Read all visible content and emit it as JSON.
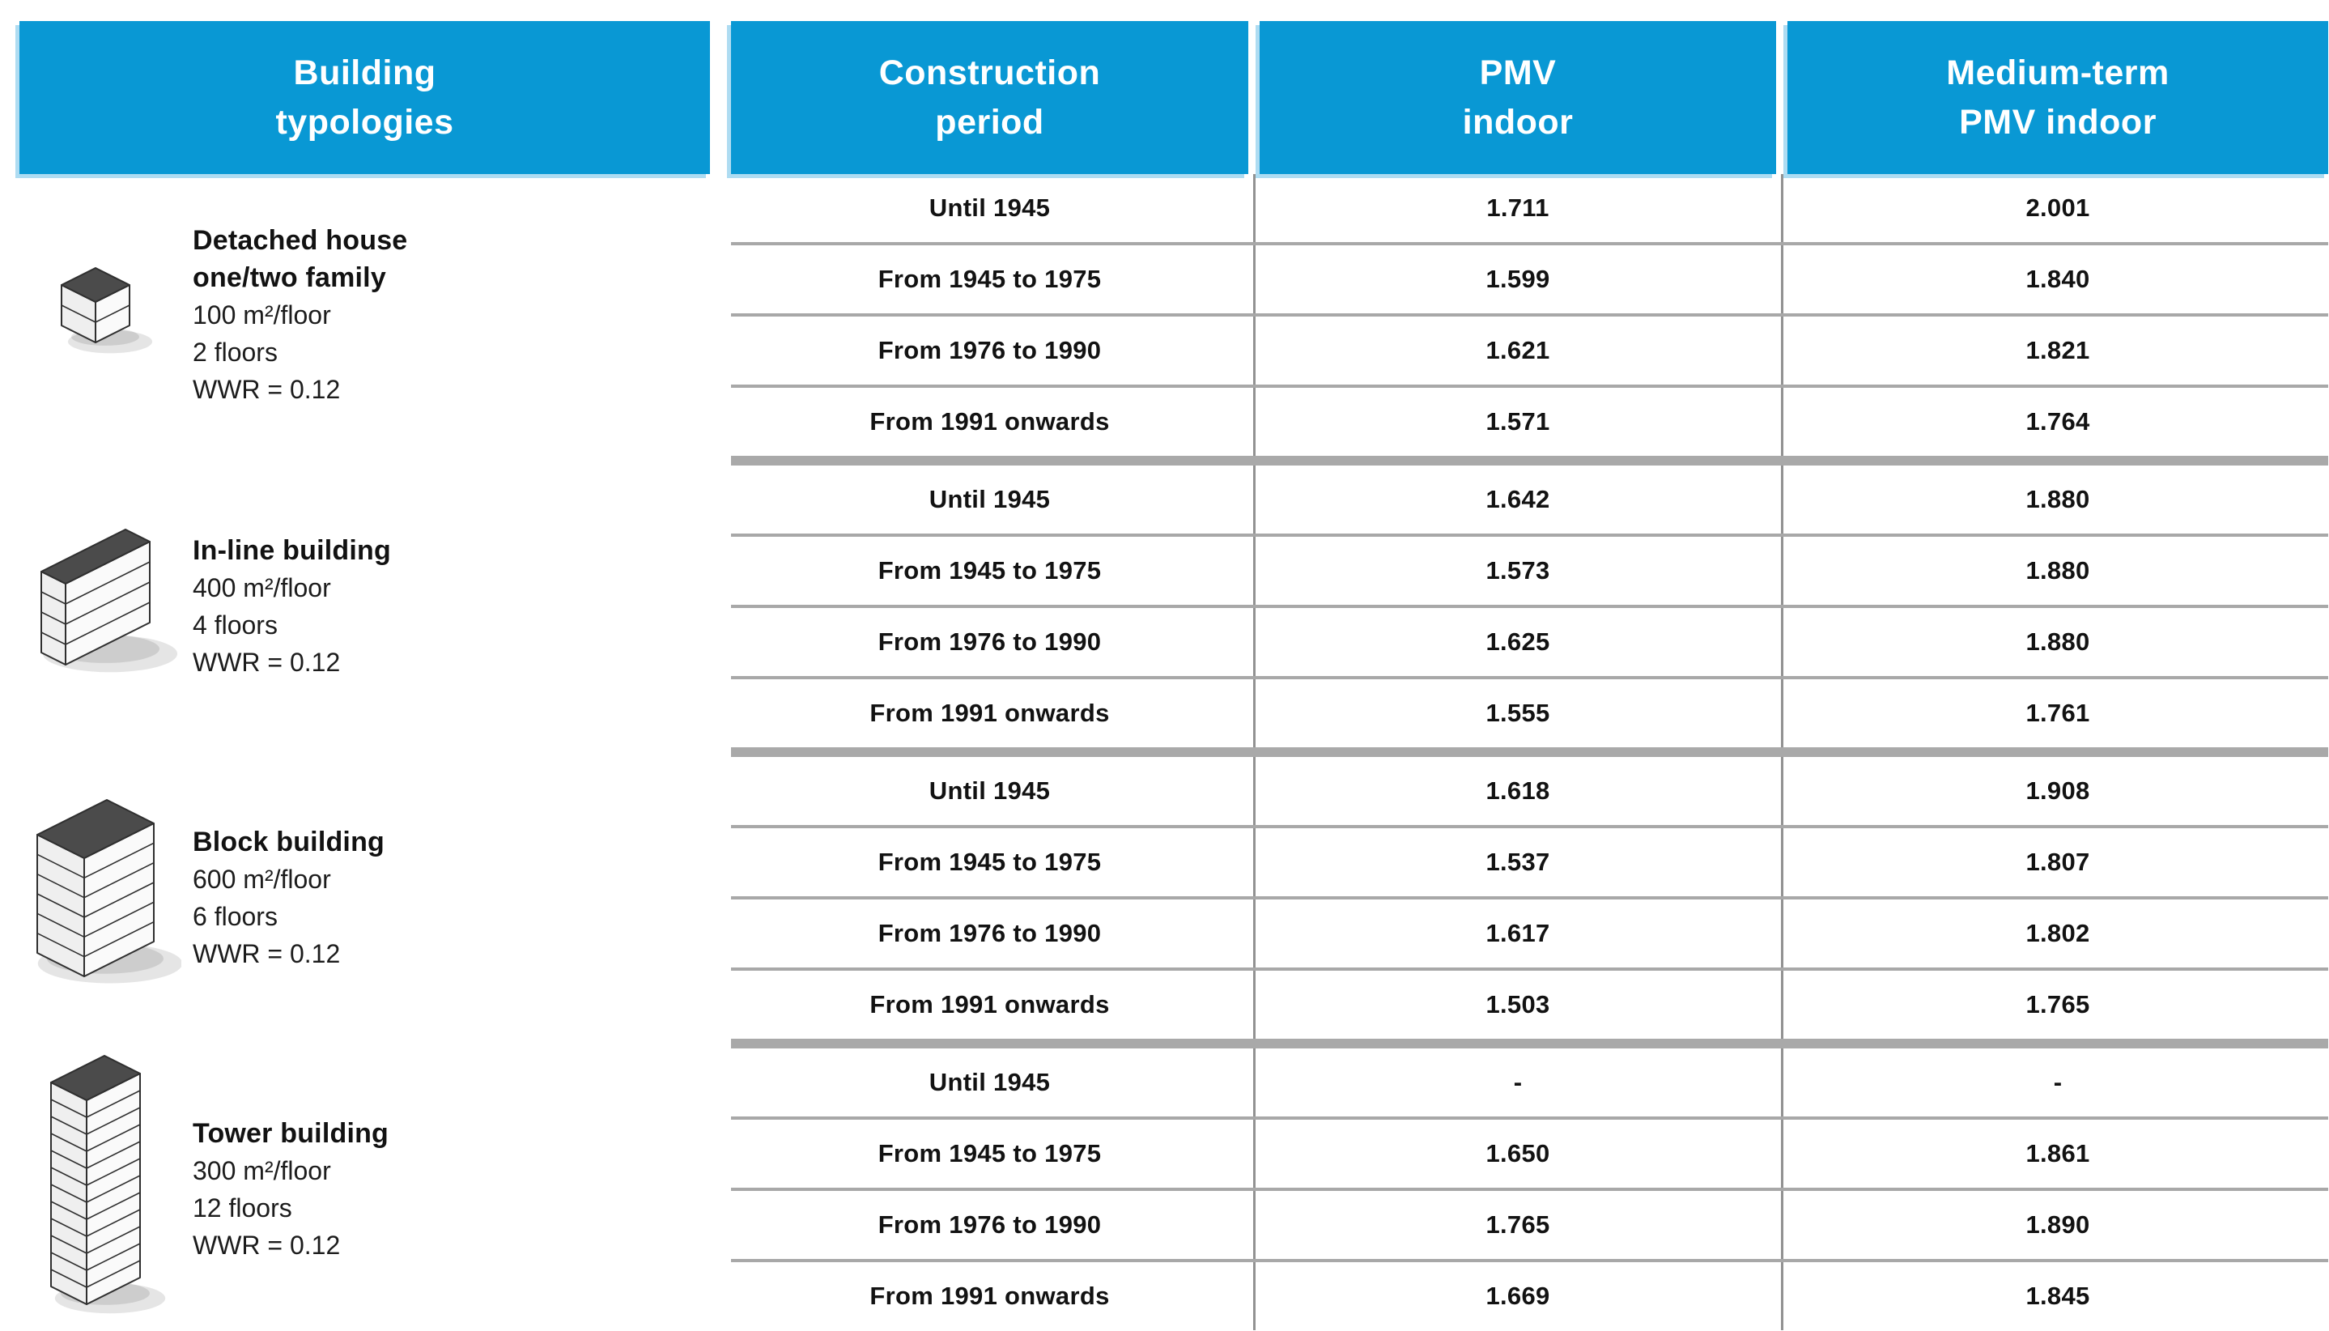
{
  "header": {
    "col1": {
      "line1": "Building",
      "line2": "typologies"
    },
    "col2": {
      "line1": "Construction",
      "line2": "period"
    },
    "col3": {
      "line1": "PMV",
      "line2": "indoor"
    },
    "col4": {
      "line1": "Medium-term",
      "line2": "PMV indoor"
    }
  },
  "buildings": [
    {
      "name_line1": "Detached house",
      "name_line2": "one/two family",
      "area": "100 m²/floor",
      "floors": "2 floors",
      "wwr": "WWR = 0.12",
      "icon": "detached-house-icon"
    },
    {
      "name_line1": "In-line building",
      "area": "400 m²/floor",
      "floors": "4 floors",
      "wwr": "WWR = 0.12",
      "icon": "in-line-building-icon"
    },
    {
      "name_line1": "Block building",
      "area": "600 m²/floor",
      "floors": "6 floors",
      "wwr": "WWR = 0.12",
      "icon": "block-building-icon"
    },
    {
      "name_line1": "Tower building",
      "area": "300 m²/floor",
      "floors": "12 floors",
      "wwr": "WWR = 0.12",
      "icon": "tower-building-icon"
    }
  ],
  "chart_data": {
    "type": "table",
    "columns": [
      "Building typologies",
      "Construction period",
      "PMV indoor",
      "Medium-term PMV indoor"
    ],
    "groups": [
      {
        "building": "Detached house one/two family",
        "specs": {
          "area_per_floor": "100 m²/floor",
          "floors": "2 floors",
          "wwr": "WWR = 0.12"
        },
        "rows": [
          {
            "period": "Until 1945",
            "pmv": "1.711",
            "mt_pmv": "2.001"
          },
          {
            "period": "From 1945 to 1975",
            "pmv": "1.599",
            "mt_pmv": "1.840"
          },
          {
            "period": "From 1976 to 1990",
            "pmv": "1.621",
            "mt_pmv": "1.821"
          },
          {
            "period": "From 1991 onwards",
            "pmv": "1.571",
            "mt_pmv": "1.764"
          }
        ]
      },
      {
        "building": "In-line building",
        "specs": {
          "area_per_floor": "400 m²/floor",
          "floors": "4 floors",
          "wwr": "WWR = 0.12"
        },
        "rows": [
          {
            "period": "Until 1945",
            "pmv": "1.642",
            "mt_pmv": "1.880"
          },
          {
            "period": "From 1945 to 1975",
            "pmv": "1.573",
            "mt_pmv": "1.880"
          },
          {
            "period": "From 1976 to 1990",
            "pmv": "1.625",
            "mt_pmv": "1.880"
          },
          {
            "period": "From 1991 onwards",
            "pmv": "1.555",
            "mt_pmv": "1.761"
          }
        ]
      },
      {
        "building": "Block building",
        "specs": {
          "area_per_floor": "600 m²/floor",
          "floors": "6 floors",
          "wwr": "WWR = 0.12"
        },
        "rows": [
          {
            "period": "Until 1945",
            "pmv": "1.618",
            "mt_pmv": "1.908"
          },
          {
            "period": "From 1945 to 1975",
            "pmv": "1.537",
            "mt_pmv": "1.807"
          },
          {
            "period": "From 1976 to 1990",
            "pmv": "1.617",
            "mt_pmv": "1.802"
          },
          {
            "period": "From 1991 onwards",
            "pmv": "1.503",
            "mt_pmv": "1.765"
          }
        ]
      },
      {
        "building": "Tower building",
        "specs": {
          "area_per_floor": "300 m²/floor",
          "floors": "12 floors",
          "wwr": "WWR = 0.12"
        },
        "rows": [
          {
            "period": "Until 1945",
            "pmv": "-",
            "mt_pmv": "-"
          },
          {
            "period": "From 1945 to 1975",
            "pmv": "1.650",
            "mt_pmv": "1.861"
          },
          {
            "period": "From 1976 to 1990",
            "pmv": "1.765",
            "mt_pmv": "1.890"
          },
          {
            "period": "From 1991 onwards",
            "pmv": "1.669",
            "mt_pmv": "1.845"
          }
        ]
      }
    ]
  },
  "colors": {
    "header_blue": "#0998d4",
    "header_edge_light_blue": "#aedcf2",
    "separator_gray": "#a8a8a8",
    "text": "#121212"
  }
}
